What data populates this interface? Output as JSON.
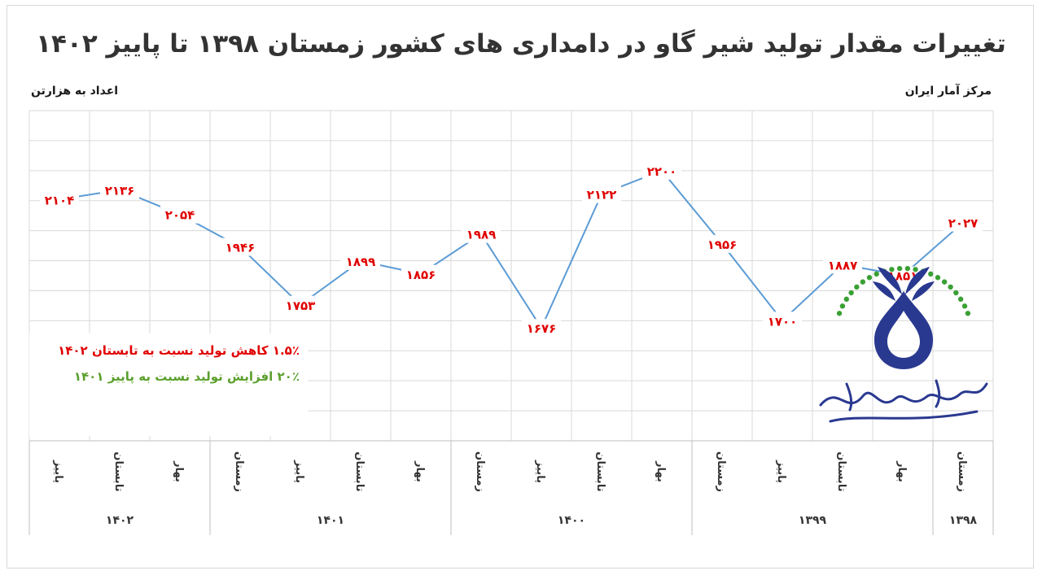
{
  "title": "تغییرات مقدار تولید شیر گاو در دامداری های کشور زمستان ۱۳۹۸ تا پاییز ۱۴۰۲",
  "source": "مرکز آمار ایران",
  "units_note": "اعداد به هزارتن",
  "notes": [
    {
      "text": "۱.۵٪ کاهش تولید نسبت به تابستان ۱۴۰۲",
      "color": "#e00000"
    },
    {
      "text": "۲۰٪ افزایش تولید نسبت به پاییز ۱۴۰۱",
      "color": "#5aa02c"
    }
  ],
  "logo": {
    "name": "انجمن صنایع فراورده های لبنی ایران",
    "colors": {
      "primary": "#2a3990",
      "stars": "#3aa035"
    }
  },
  "chart_data": {
    "type": "line",
    "categories": [
      "زمستان",
      "بهار",
      "تابستان",
      "پاییز",
      "زمستان",
      "بهار",
      "تابستان",
      "پاییز",
      "زمستان",
      "بهار",
      "تابستان",
      "پاییز",
      "زمستان",
      "بهار",
      "تابستان",
      "پاییز"
    ],
    "years": [
      {
        "label": "۱۳۹۸",
        "start": 0,
        "count": 1
      },
      {
        "label": "۱۳۹۹",
        "start": 1,
        "count": 4
      },
      {
        "label": "۱۴۰۰",
        "start": 5,
        "count": 4
      },
      {
        "label": "۱۴۰۱",
        "start": 9,
        "count": 4
      },
      {
        "label": "۱۴۰۲",
        "start": 13,
        "count": 3
      }
    ],
    "values": [
      2027,
      1851,
      1887,
      1700,
      1956,
      2200,
      2122,
      1676,
      1989,
      1856,
      1899,
      1753,
      1946,
      2054,
      2136,
      2104
    ],
    "value_labels": [
      "۲۰۲۷",
      "۱۸۵۱",
      "۱۸۸۷",
      "۱۷۰۰",
      "۱۹۵۶",
      "۲۲۰۰",
      "۲۱۲۲",
      "۱۶۷۶",
      "۱۹۸۹",
      "۱۸۵۶",
      "۱۸۹۹",
      "۱۷۵۳",
      "۱۹۴۶",
      "۲۰۵۴",
      "۲۱۳۶",
      "۲۱۰۴"
    ],
    "ylim": [
      1300,
      2400
    ],
    "grid": true,
    "line_color": "#5b9bd5",
    "label_color": "#e00000"
  }
}
